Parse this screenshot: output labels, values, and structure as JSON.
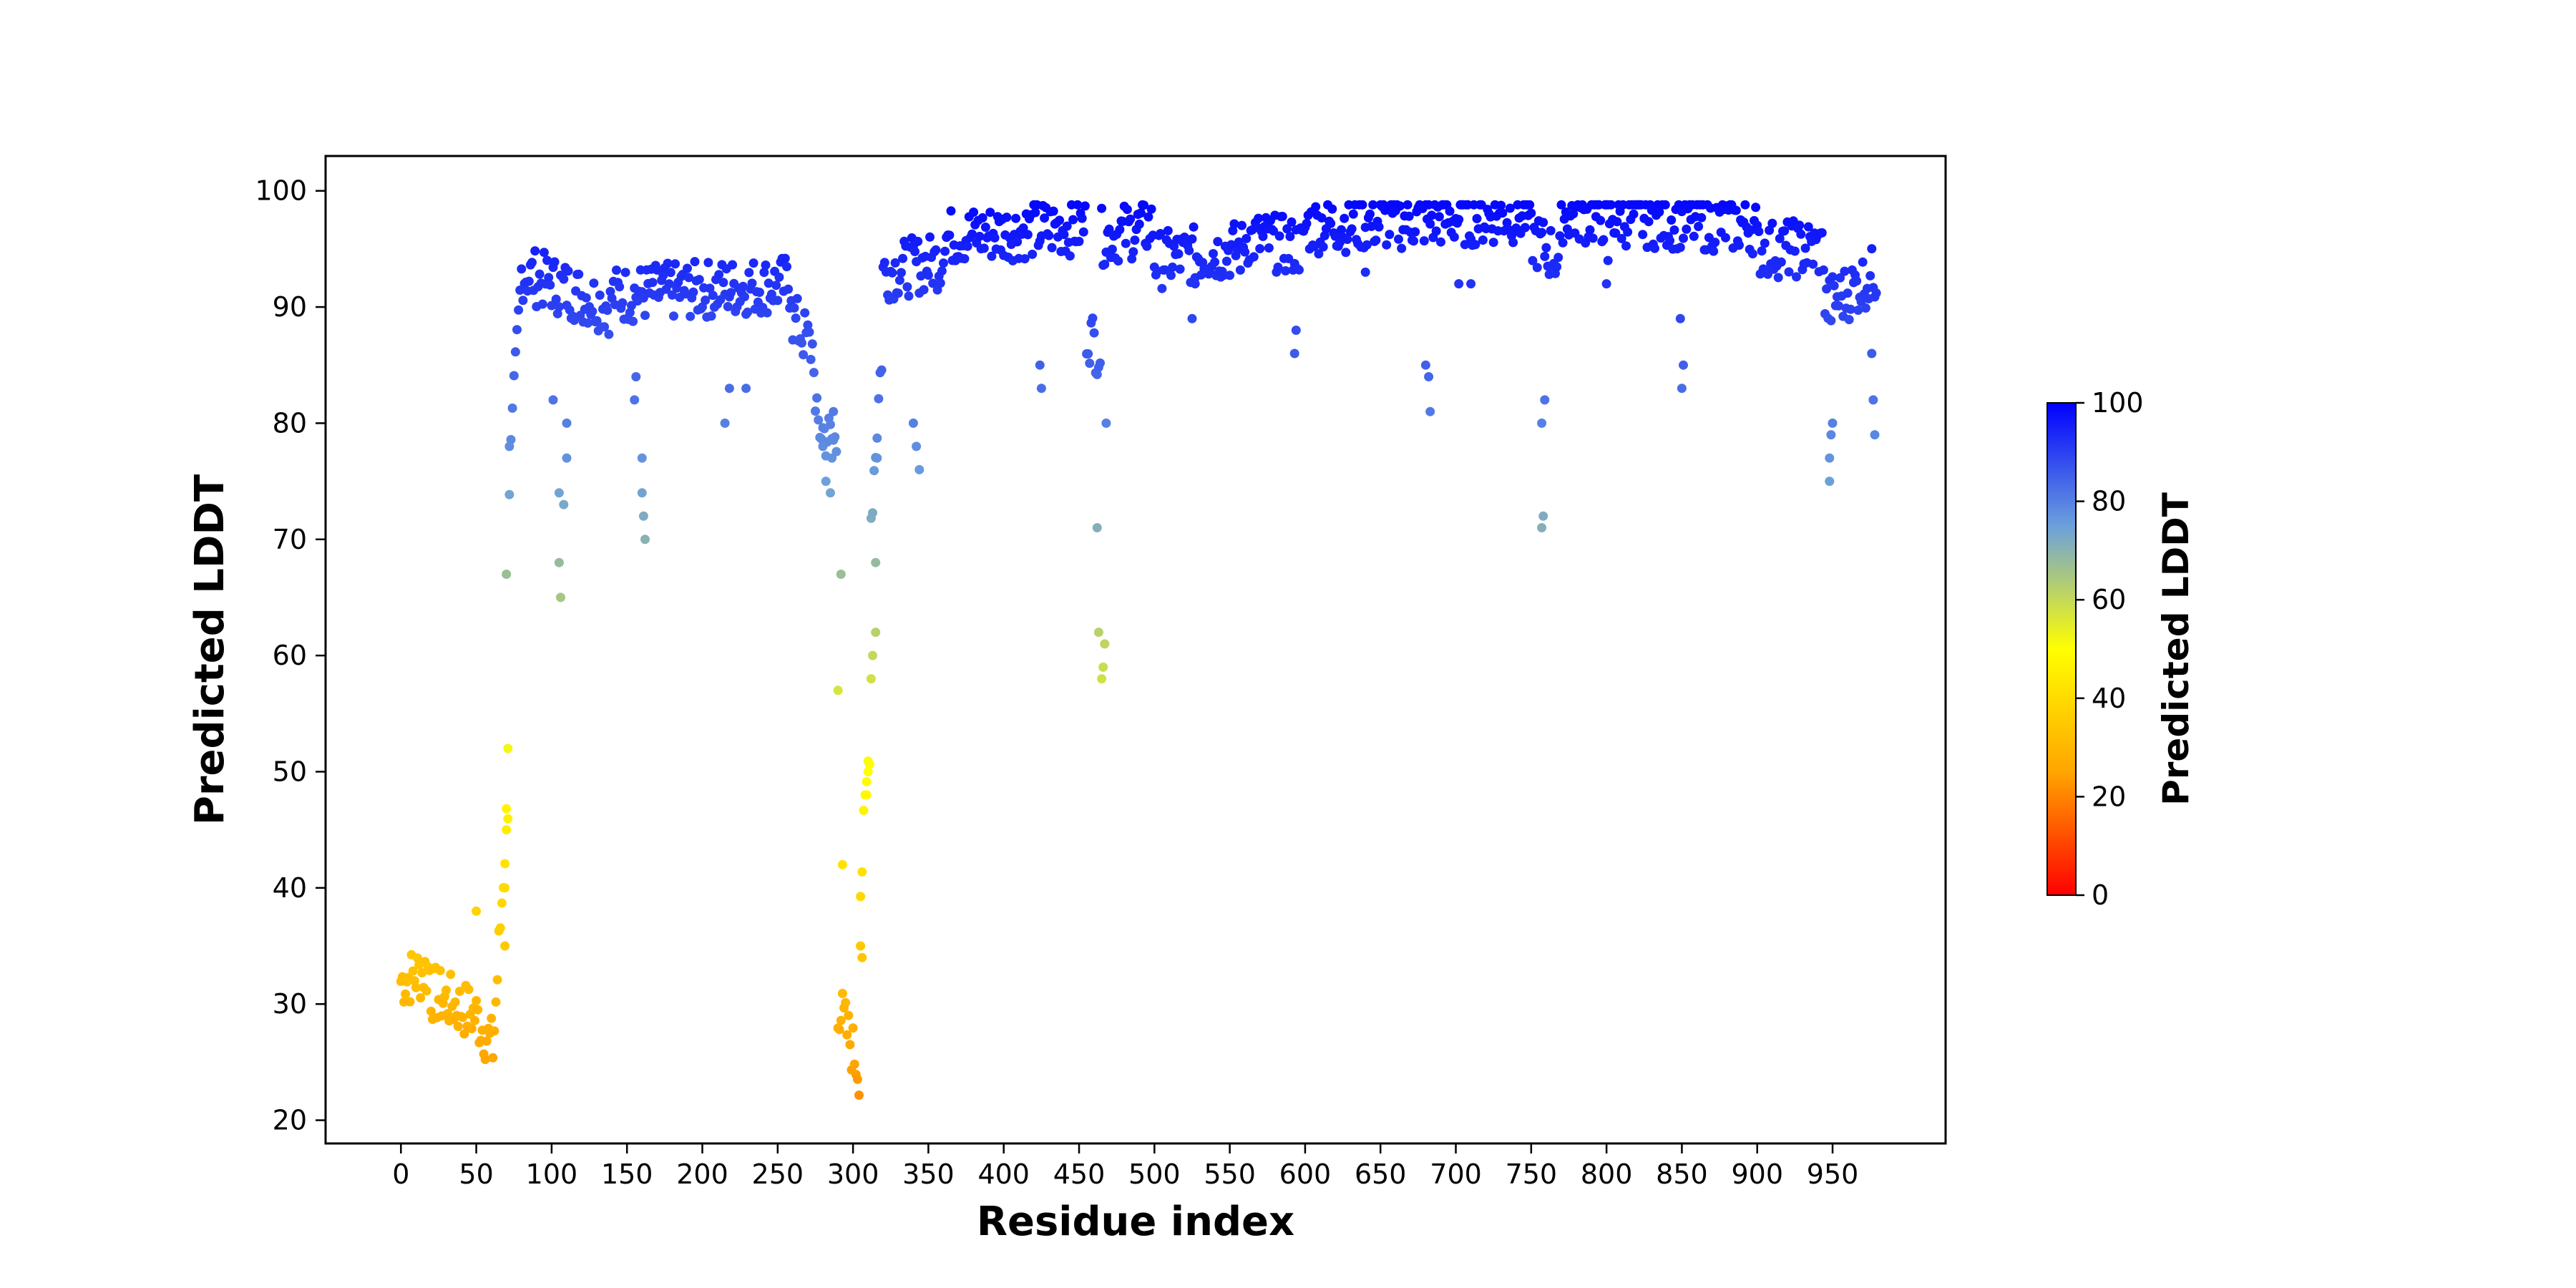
{
  "chart_data": {
    "type": "scatter",
    "title": "",
    "xlabel": "Residue index",
    "ylabel": "Predicted LDDT",
    "xlim": [
      -50,
      1025
    ],
    "ylim": [
      18,
      103
    ],
    "xticks": [
      0,
      50,
      100,
      150,
      200,
      250,
      300,
      350,
      400,
      450,
      500,
      550,
      600,
      650,
      700,
      750,
      800,
      850,
      900,
      950
    ],
    "yticks": [
      20,
      30,
      40,
      50,
      60,
      70,
      80,
      90,
      100
    ],
    "grid": false,
    "legend": "none",
    "colorbar": {
      "label": "Predicted LDDT",
      "range": [
        0,
        100
      ],
      "ticks": [
        0,
        20,
        40,
        60,
        80,
        100
      ],
      "colors": [
        "#ff0000",
        "#ffa500",
        "#ffff00",
        "#6ca0dc",
        "#0000ff"
      ]
    },
    "segments": [
      {
        "x": [
          0,
          20
        ],
        "y": [
          32,
          33
        ]
      },
      {
        "x": [
          20,
          50
        ],
        "y": [
          31,
          29
        ]
      },
      {
        "x": [
          50,
          62
        ],
        "y": [
          29,
          26
        ]
      },
      {
        "x": [
          62,
          72
        ],
        "y": [
          28,
          50
        ]
      },
      {
        "x": [
          72,
          80
        ],
        "y": [
          75,
          93
        ]
      },
      {
        "x": [
          80,
          140
        ],
        "y": [
          93,
          90
        ]
      },
      {
        "x": [
          140,
          260
        ],
        "y": [
          91,
          92
        ]
      },
      {
        "x": [
          260,
          275
        ],
        "y": [
          89,
          86
        ]
      },
      {
        "x": [
          275,
          290
        ],
        "y": [
          80,
          78
        ]
      },
      {
        "x": [
          290,
          305
        ],
        "y": [
          30,
          24
        ]
      },
      {
        "x": [
          305,
          312
        ],
        "y": [
          40,
          55
        ]
      },
      {
        "x": [
          312,
          320
        ],
        "y": [
          72,
          88
        ]
      },
      {
        "x": [
          320,
          360
        ],
        "y": [
          93,
          94
        ]
      },
      {
        "x": [
          360,
          455
        ],
        "y": [
          96,
          97
        ]
      },
      {
        "x": [
          455,
          465
        ],
        "y": [
          88,
          86
        ]
      },
      {
        "x": [
          465,
          500
        ],
        "y": [
          96,
          97
        ]
      },
      {
        "x": [
          500,
          560
        ],
        "y": [
          94,
          95
        ]
      },
      {
        "x": [
          560,
          600
        ],
        "y": [
          96,
          95
        ]
      },
      {
        "x": [
          600,
          750
        ],
        "y": [
          97,
          98
        ]
      },
      {
        "x": [
          750,
          770
        ],
        "y": [
          96,
          94
        ]
      },
      {
        "x": [
          770,
          900
        ],
        "y": [
          98,
          97
        ]
      },
      {
        "x": [
          900,
          945
        ],
        "y": [
          95,
          95
        ]
      },
      {
        "x": [
          945,
          980
        ],
        "y": [
          90,
          93
        ]
      }
    ],
    "dips": [
      [
        70,
        67
      ],
      [
        71,
        52
      ],
      [
        70,
        45
      ],
      [
        69,
        40
      ],
      [
        69,
        35
      ],
      [
        72,
        78
      ],
      [
        50,
        38
      ],
      [
        105,
        68
      ],
      [
        106,
        65
      ],
      [
        105,
        74
      ],
      [
        108,
        73
      ],
      [
        110,
        77
      ],
      [
        110,
        80
      ],
      [
        101,
        82
      ],
      [
        160,
        74
      ],
      [
        160,
        77
      ],
      [
        161,
        72
      ],
      [
        162,
        70
      ],
      [
        155,
        82
      ],
      [
        156,
        84
      ],
      [
        215,
        80
      ],
      [
        218,
        83
      ],
      [
        229,
        83
      ],
      [
        290,
        57
      ],
      [
        293,
        42
      ],
      [
        292,
        67
      ],
      [
        285,
        74
      ],
      [
        282,
        75
      ],
      [
        280,
        78
      ],
      [
        286,
        77
      ],
      [
        287,
        81
      ],
      [
        305,
        35
      ],
      [
        306,
        34
      ],
      [
        309,
        48
      ],
      [
        310,
        50
      ],
      [
        312,
        58
      ],
      [
        313,
        60
      ],
      [
        315,
        62
      ],
      [
        315,
        68
      ],
      [
        316,
        77
      ],
      [
        340,
        80
      ],
      [
        342,
        78
      ],
      [
        344,
        76
      ],
      [
        462,
        71
      ],
      [
        463,
        62
      ],
      [
        465,
        58
      ],
      [
        466,
        59
      ],
      [
        467,
        61
      ],
      [
        468,
        80
      ],
      [
        680,
        85
      ],
      [
        682,
        84
      ],
      [
        683,
        81
      ],
      [
        757,
        71
      ],
      [
        758,
        72
      ],
      [
        757,
        80
      ],
      [
        759,
        82
      ],
      [
        850,
        83
      ],
      [
        851,
        85
      ],
      [
        849,
        89
      ],
      [
        948,
        75
      ],
      [
        948,
        77
      ],
      [
        949,
        79
      ],
      [
        950,
        80
      ],
      [
        978,
        79
      ],
      [
        977,
        82
      ],
      [
        976,
        86
      ],
      [
        593,
        86
      ],
      [
        594,
        88
      ],
      [
        525,
        89
      ],
      [
        527,
        92
      ],
      [
        800,
        92
      ],
      [
        801,
        94
      ],
      [
        710,
        92
      ],
      [
        702,
        92
      ],
      [
        640,
        93
      ],
      [
        425,
        83
      ],
      [
        424,
        85
      ]
    ]
  }
}
